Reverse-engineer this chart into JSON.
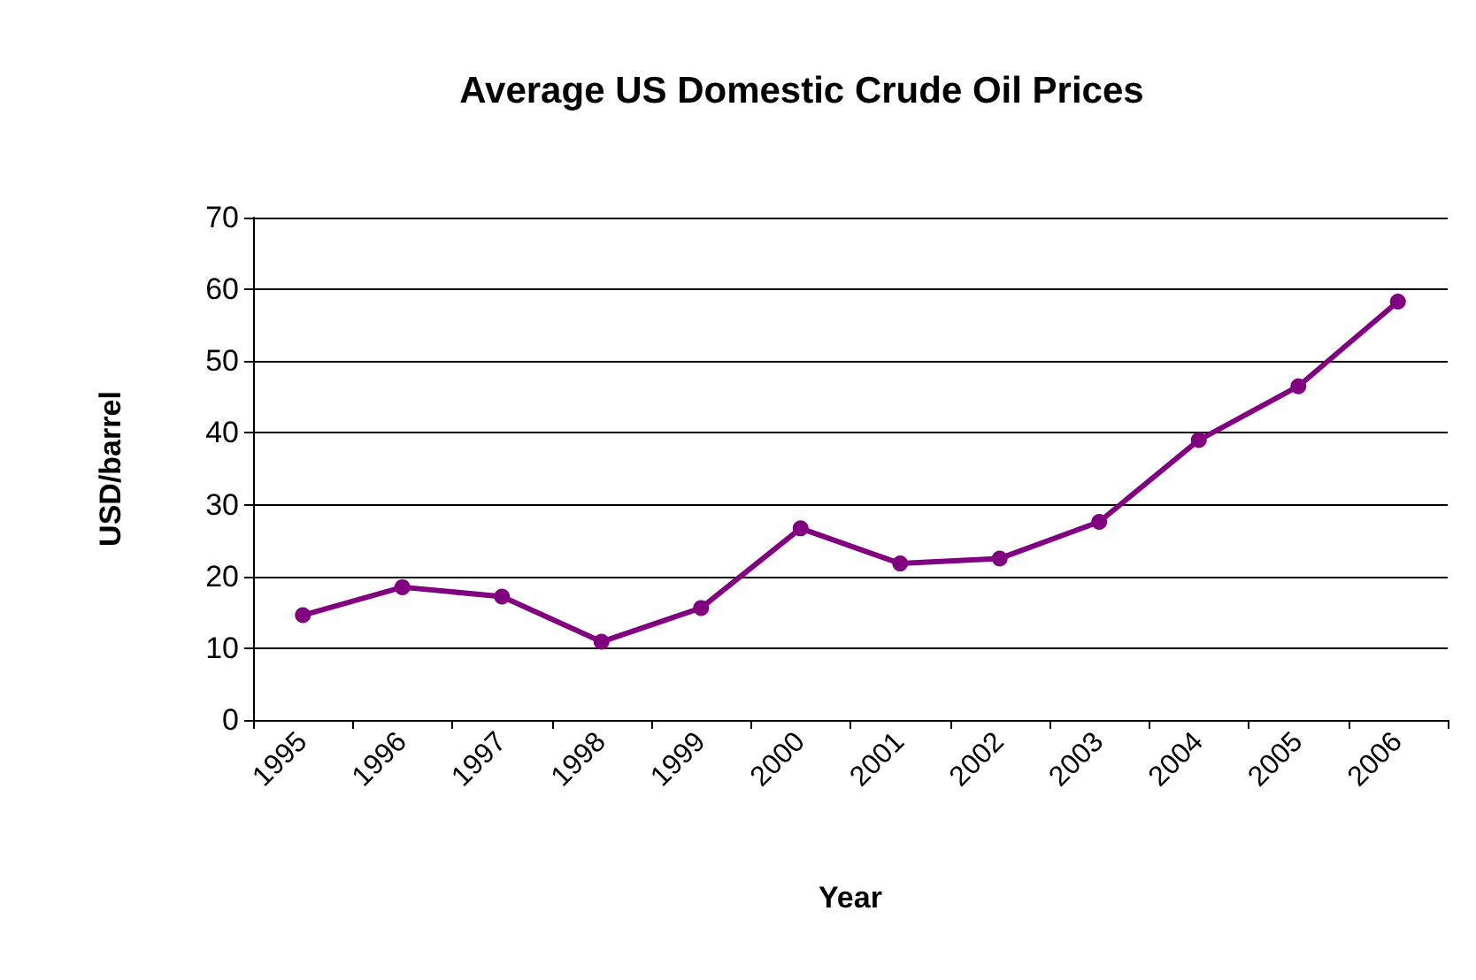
{
  "chart_data": {
    "type": "line",
    "title": "Average US Domestic Crude Oil Prices",
    "xlabel": "Year",
    "ylabel": "USD/barrel",
    "categories": [
      "1995",
      "1996",
      "1997",
      "1998",
      "1999",
      "2000",
      "2001",
      "2002",
      "2003",
      "2004",
      "2005",
      "2006"
    ],
    "series": [
      {
        "color": "#800080",
        "values": [
          14.6,
          18.5,
          17.2,
          10.9,
          15.6,
          26.7,
          21.8,
          22.5,
          27.6,
          39,
          46.5,
          58.3
        ]
      }
    ],
    "ylim": [
      0,
      70
    ],
    "yticks": [
      0,
      10,
      20,
      30,
      40,
      50,
      60,
      70
    ],
    "grid": "y",
    "marker": "circle",
    "line_style": "solid"
  }
}
